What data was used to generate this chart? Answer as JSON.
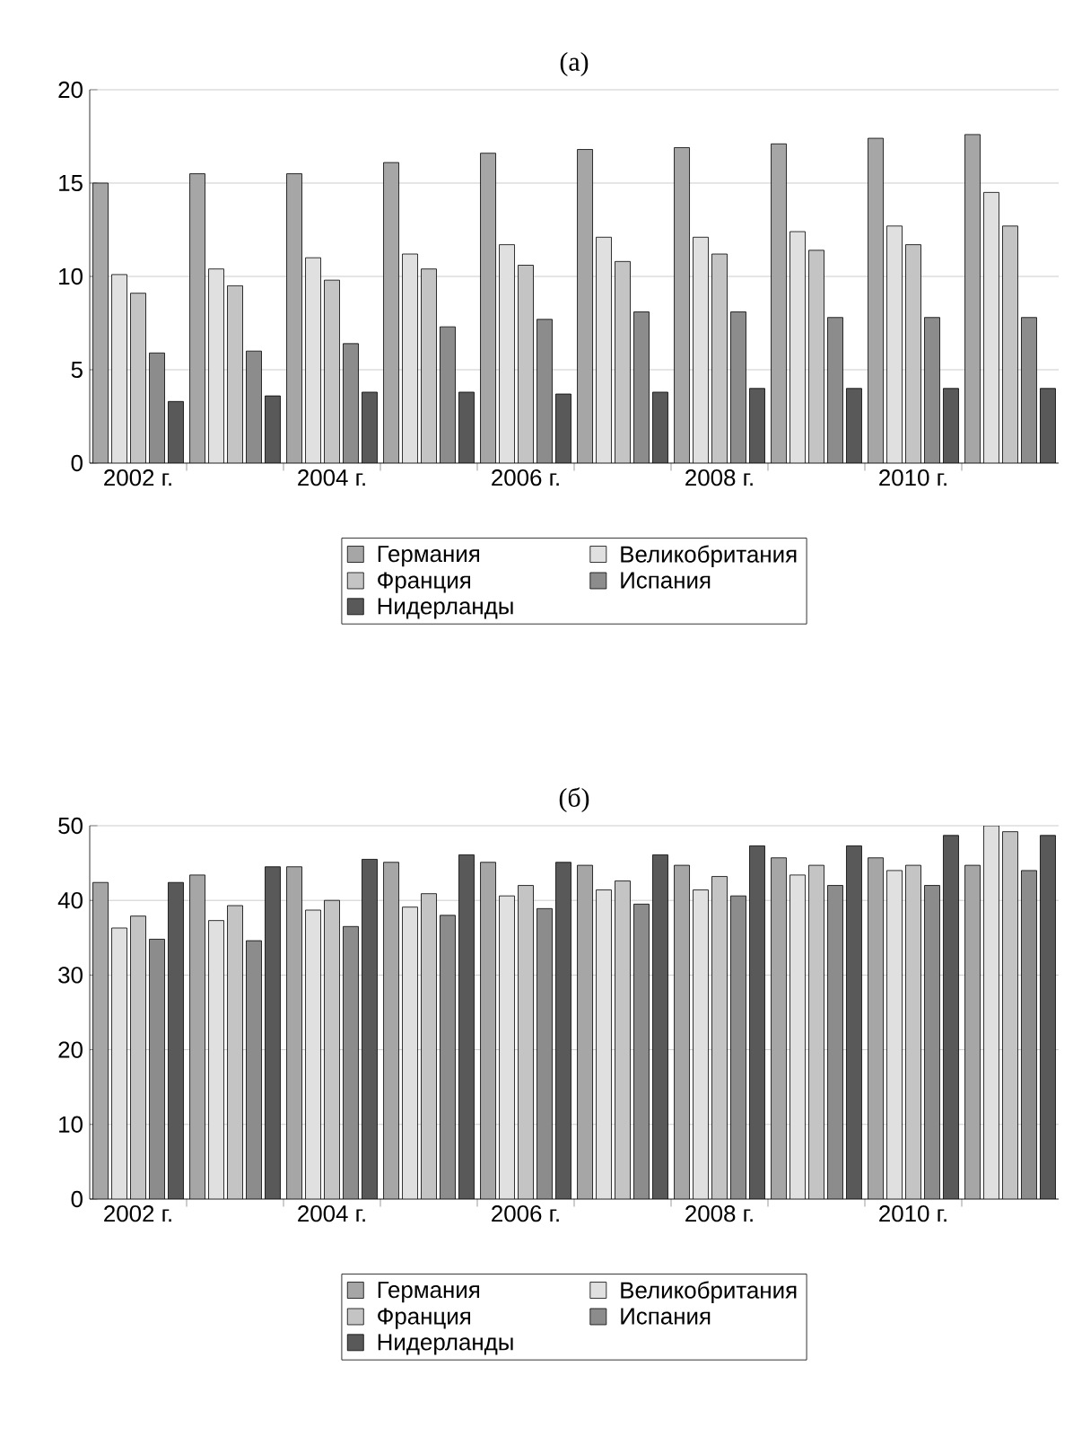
{
  "chart_data": [
    {
      "type": "bar",
      "title": "(а)",
      "categories": [
        "2002 г.",
        null,
        "2004 г.",
        null,
        "2006 г.",
        null,
        "2008 г.",
        null,
        "2010 г.",
        null
      ],
      "series": [
        {
          "name": "Германия",
          "color": "#a6a6a6",
          "values": [
            15.0,
            15.5,
            15.5,
            16.1,
            16.6,
            16.8,
            16.9,
            17.1,
            17.4,
            17.6
          ]
        },
        {
          "name": "Великобритания",
          "color": "#e0e0e0",
          "values": [
            10.1,
            10.4,
            11.0,
            11.2,
            11.7,
            12.1,
            12.1,
            12.4,
            12.7,
            14.5
          ]
        },
        {
          "name": "Франция",
          "color": "#c4c4c4",
          "values": [
            9.1,
            9.5,
            9.8,
            10.4,
            10.6,
            10.8,
            11.2,
            11.4,
            11.7,
            12.7
          ]
        },
        {
          "name": "Испания",
          "color": "#8c8c8c",
          "values": [
            5.9,
            6.0,
            6.4,
            7.3,
            7.7,
            8.1,
            8.1,
            7.8,
            7.8,
            7.8
          ]
        },
        {
          "name": "Нидерланды",
          "color": "#595959",
          "values": [
            3.3,
            3.6,
            3.8,
            3.8,
            3.7,
            3.8,
            4.0,
            4.0,
            4.0,
            4.0
          ]
        }
      ],
      "ylim": [
        0,
        20
      ],
      "yticks": [
        0,
        5,
        10,
        15,
        20
      ],
      "grid": "y",
      "legend": "bottom"
    },
    {
      "type": "bar",
      "title": "(б)",
      "categories": [
        "2002 г.",
        null,
        "2004 г.",
        null,
        "2006 г.",
        null,
        "2008 г.",
        null,
        "2010 г.",
        null
      ],
      "series": [
        {
          "name": "Германия",
          "color": "#a6a6a6",
          "values": [
            42.4,
            43.4,
            44.5,
            45.1,
            45.1,
            44.7,
            44.7,
            45.7,
            45.7,
            44.7
          ]
        },
        {
          "name": "Великобритания",
          "color": "#e0e0e0",
          "values": [
            36.3,
            37.3,
            38.7,
            39.1,
            40.6,
            41.4,
            41.4,
            43.4,
            44.0,
            50.0
          ]
        },
        {
          "name": "Франция",
          "color": "#c4c4c4",
          "values": [
            37.9,
            39.3,
            40.0,
            40.9,
            42.0,
            42.6,
            43.2,
            44.7,
            44.7,
            49.2
          ]
        },
        {
          "name": "Испания",
          "color": "#8c8c8c",
          "values": [
            34.8,
            34.6,
            36.5,
            38.0,
            38.9,
            39.5,
            40.6,
            42.0,
            42.0,
            44.0
          ]
        },
        {
          "name": "Нидерланды",
          "color": "#595959",
          "values": [
            42.4,
            44.5,
            45.5,
            46.1,
            45.1,
            46.1,
            47.3,
            47.3,
            48.7,
            48.7
          ]
        }
      ],
      "ylim": [
        0,
        50
      ],
      "yticks": [
        0,
        10,
        20,
        30,
        40,
        50
      ],
      "grid": "y",
      "legend": "bottom"
    }
  ]
}
